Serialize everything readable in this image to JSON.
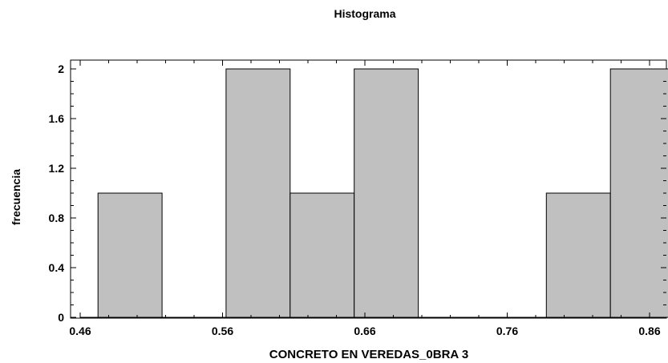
{
  "chart_data": {
    "type": "bar",
    "title": "Histograma",
    "xlabel": "CONCRETO EN VEREDAS_0BRA 3",
    "ylabel": "frecuencia",
    "bin_width": 0.045,
    "bins": [
      {
        "start": 0.4725,
        "end": 0.5175,
        "count": 1
      },
      {
        "start": 0.5175,
        "end": 0.5625,
        "count": 0
      },
      {
        "start": 0.5625,
        "end": 0.6075,
        "count": 2
      },
      {
        "start": 0.6075,
        "end": 0.6525,
        "count": 1
      },
      {
        "start": 0.6525,
        "end": 0.6975,
        "count": 2
      },
      {
        "start": 0.6975,
        "end": 0.7425,
        "count": 0
      },
      {
        "start": 0.7425,
        "end": 0.7875,
        "count": 0
      },
      {
        "start": 0.7875,
        "end": 0.8325,
        "count": 1
      },
      {
        "start": 0.8325,
        "end": 0.8775,
        "count": 2
      }
    ],
    "xlim": [
      0.46,
      0.86
    ],
    "ylim": [
      0,
      2
    ],
    "xticks": [
      "0.46",
      "0.56",
      "0.66",
      "0.76",
      "0.86"
    ],
    "yticks": [
      "0",
      "0.4",
      "0.8",
      "1.2",
      "1.6",
      "2"
    ],
    "bar_color": "#c0c0c0",
    "grid": false,
    "legend": "none"
  }
}
